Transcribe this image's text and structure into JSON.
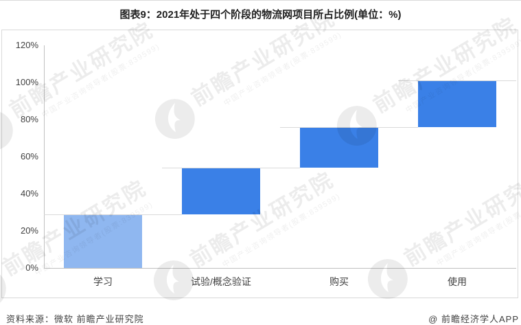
{
  "page": {
    "title": "图表9：2021年处于四个阶段的物流网项目所占比例(单位：%)",
    "footer": {
      "source": "资料来源：微软 前瞻产业研究院",
      "credit": "@ 前瞻经济学人APP"
    },
    "watermark": {
      "brand": "前瞻产业研究院",
      "tagline": "中国产业咨询领导者(股票:839599)"
    }
  },
  "chart_data": {
    "type": "bar",
    "subtype": "waterfall",
    "title": "2021年处于四个阶段的物流网项目所占比例",
    "unit": "%",
    "categories": [
      "学习",
      "试验/概念验证",
      "购买",
      "使用"
    ],
    "segment_values": [
      29,
      25,
      22,
      25
    ],
    "cumulative_start": [
      0,
      29,
      54,
      76
    ],
    "cumulative_end": [
      29,
      54,
      76,
      101
    ],
    "yticks": [
      "0%",
      "20%",
      "40%",
      "60%",
      "80%",
      "100%",
      "120%"
    ],
    "ylim": [
      0,
      120
    ],
    "grid": false,
    "legend": false,
    "bar_colors": [
      "#8FB7F0",
      "#3A80E7",
      "#3A80E7",
      "#3A80E7"
    ],
    "connector_color": "#d9d9d9",
    "axis_color": "#bfbfbf"
  }
}
